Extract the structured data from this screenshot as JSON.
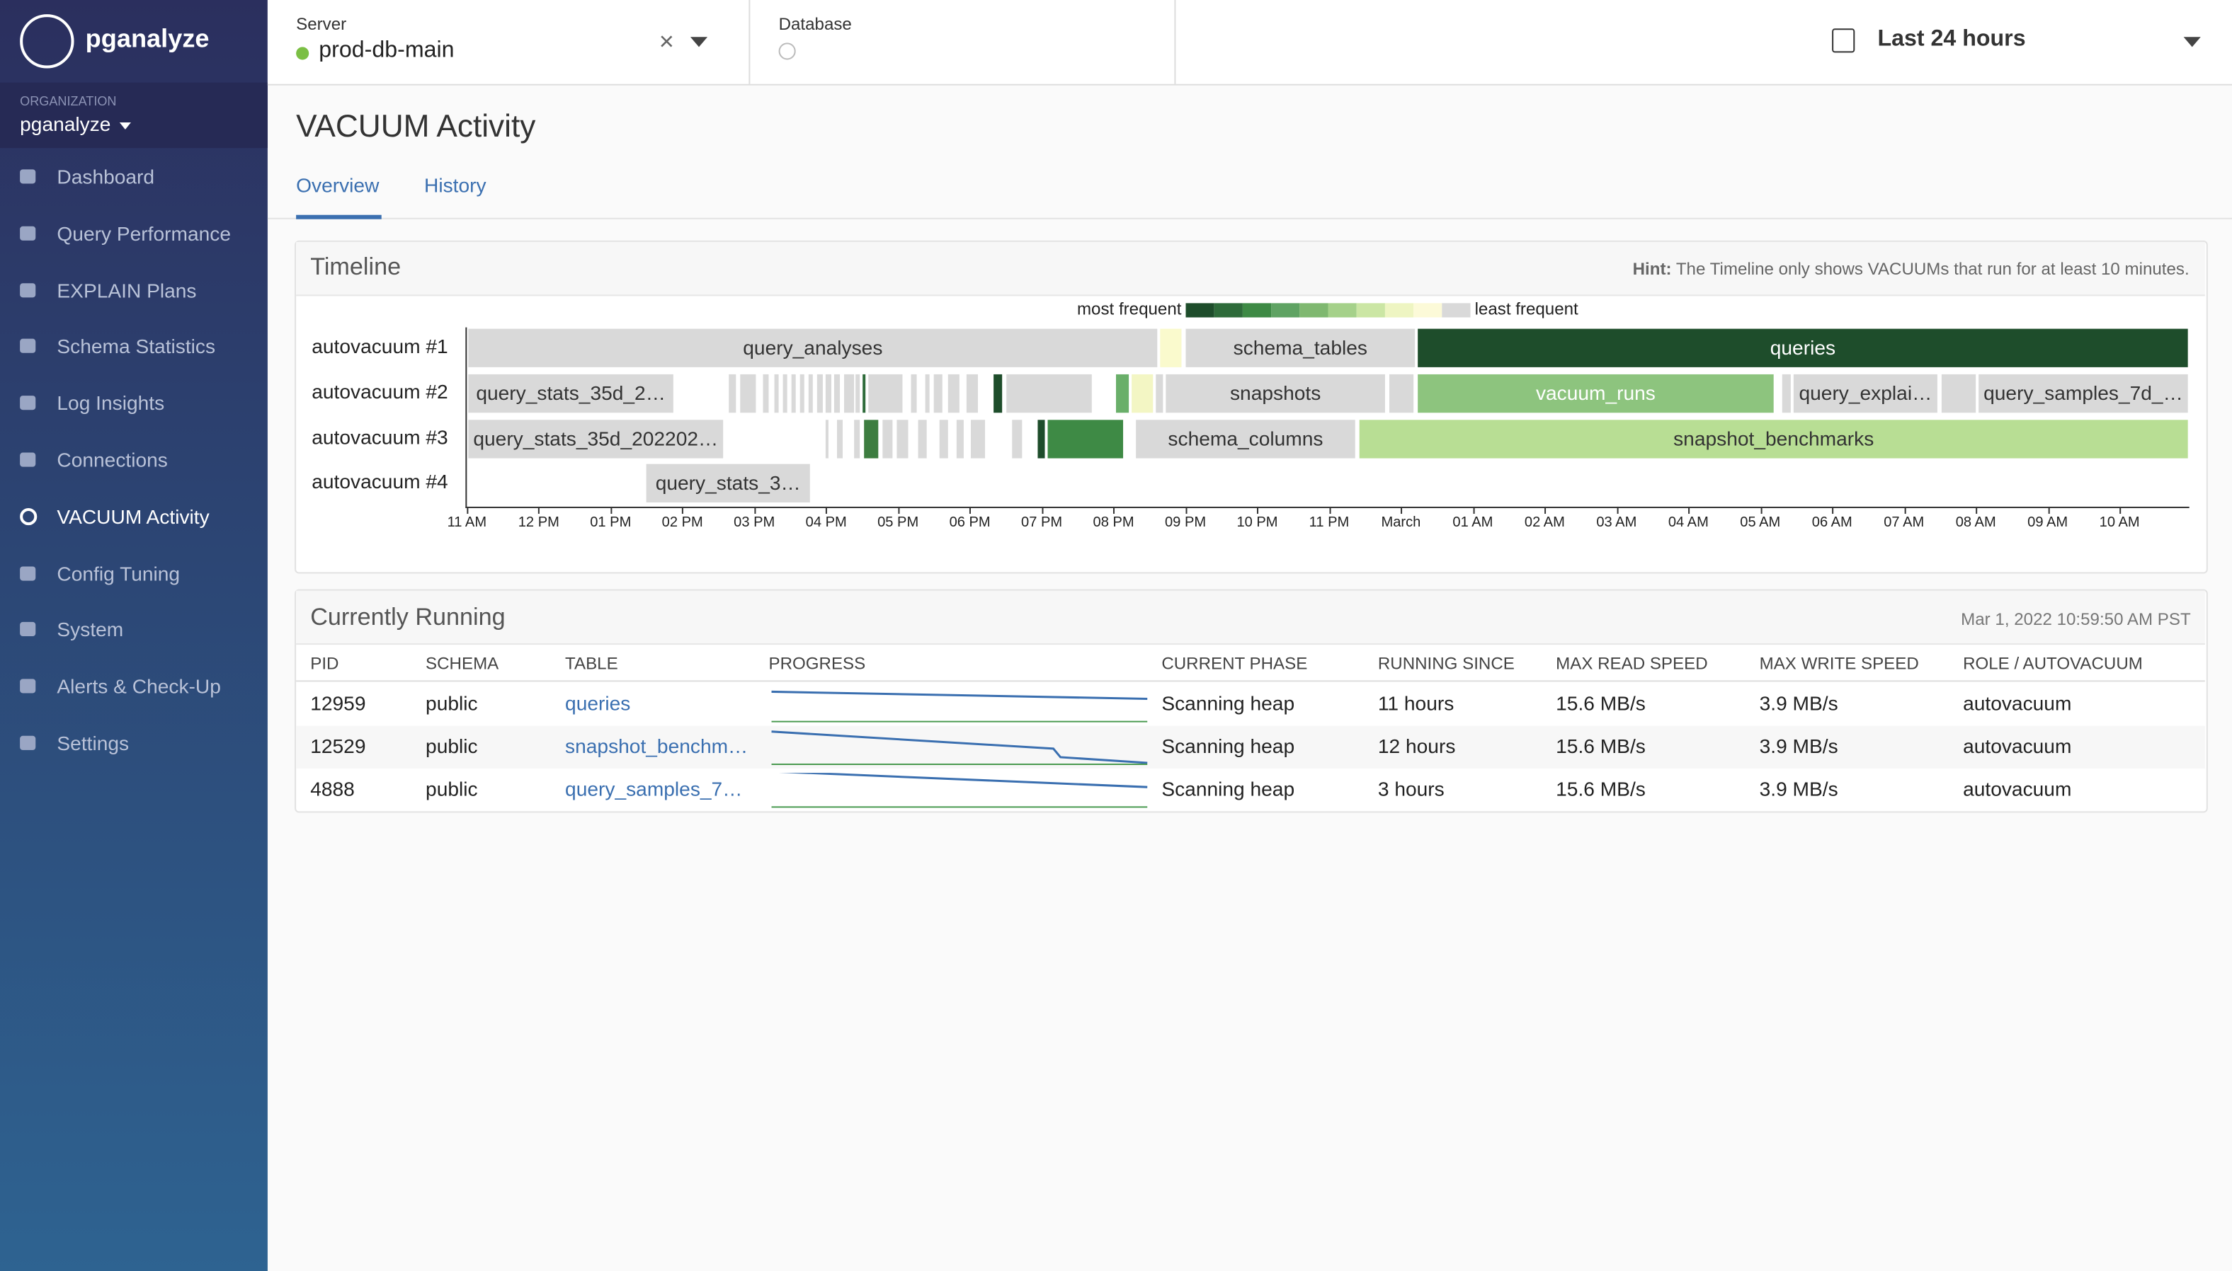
{
  "sidebar": {
    "brand": "pganalyze",
    "org_label": "ORGANIZATION",
    "org": "pganalyze",
    "nav": [
      "Dashboard",
      "Query Performance",
      "EXPLAIN Plans",
      "Schema Statistics",
      "Log Insights",
      "Connections",
      "VACUUM Activity",
      "Config Tuning",
      "System",
      "Alerts & Check-Up",
      "Settings"
    ]
  },
  "header": {
    "server_label": "Server",
    "server": "prod-db-main",
    "database_label": "Database",
    "range": "Last 24 hours"
  },
  "page": {
    "title": "VACUUM Activity",
    "tabs": [
      "Overview",
      "History"
    ]
  },
  "timeline": {
    "title": "Timeline",
    "hint_label": "Hint:",
    "hint": "The Timeline only shows VACUUMs that run for at least 10 minutes.",
    "legend_most": "most frequent",
    "legend_least": "least frequent",
    "rows": [
      "autovacuum #1",
      "autovacuum #2",
      "autovacuum #3",
      "autovacuum #4"
    ],
    "bar_labels": [
      "query_analyses",
      "schema_tables",
      "queries",
      "query_stats_35d_2…",
      "snapshots",
      "vacuum_runs",
      "query_explai…",
      "query_samples_7d_…",
      "query_stats_35d_202202…",
      "schema_columns",
      "snapshot_benchmarks",
      "query_stats_3…"
    ],
    "axis": [
      "11 AM",
      "12 PM",
      "01 PM",
      "02 PM",
      "03 PM",
      "04 PM",
      "05 PM",
      "06 PM",
      "07 PM",
      "08 PM",
      "09 PM",
      "10 PM",
      "11 PM",
      "March",
      "01 AM",
      "02 AM",
      "03 AM",
      "04 AM",
      "05 AM",
      "06 AM",
      "07 AM",
      "08 AM",
      "09 AM",
      "10 AM"
    ]
  },
  "running": {
    "title": "Currently Running",
    "timestamp": "Mar 1, 2022 10:59:50 AM PST",
    "columns": [
      "PID",
      "SCHEMA",
      "TABLE",
      "PROGRESS",
      "CURRENT PHASE",
      "RUNNING SINCE",
      "MAX READ SPEED",
      "MAX WRITE SPEED",
      "ROLE / AUTOVACUUM"
    ],
    "rows": [
      [
        "12959",
        "public",
        "queries",
        "Scanning heap",
        "11 hours",
        "15.6 MB/s",
        "3.9 MB/s",
        "autovacuum"
      ],
      [
        "12529",
        "public",
        "snapshot_benchm…",
        "Scanning heap",
        "12 hours",
        "15.6 MB/s",
        "3.9 MB/s",
        "autovacuum"
      ],
      [
        "4888",
        "public",
        "query_samples_7…",
        "Scanning heap",
        "3 hours",
        "15.6 MB/s",
        "3.9 MB/s",
        "autovacuum"
      ]
    ]
  }
}
